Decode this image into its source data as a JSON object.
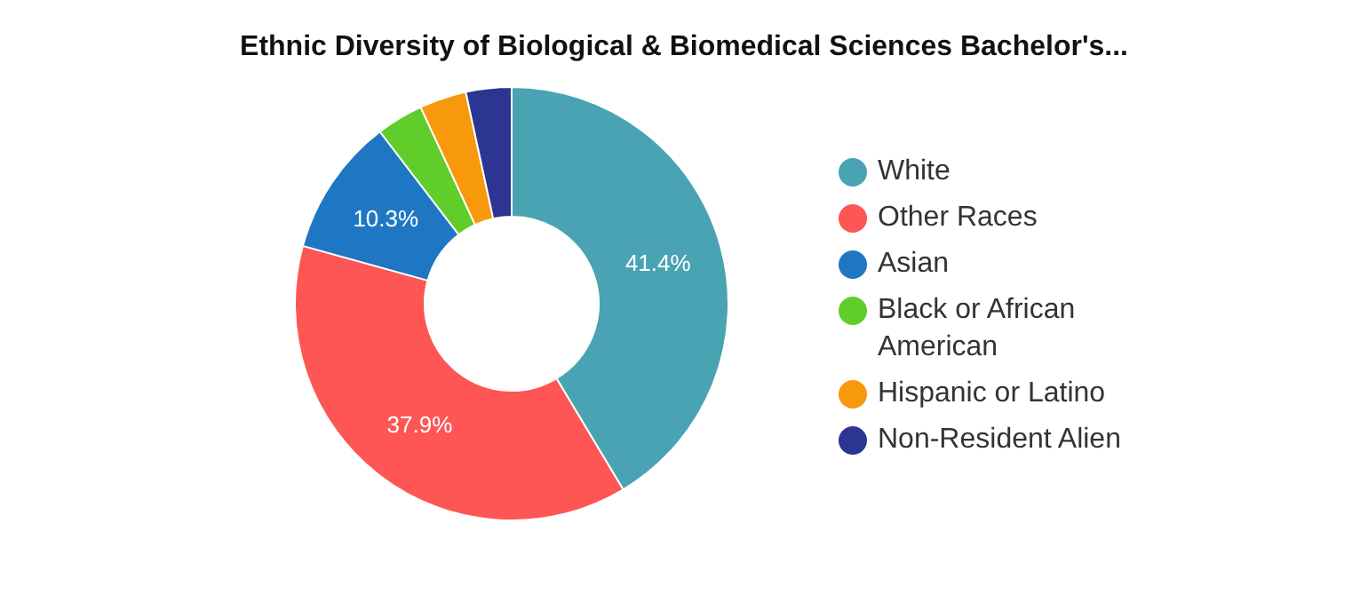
{
  "chart_data": {
    "type": "donut",
    "title": "Ethnic Diversity of Biological & Biomedical Sciences Bachelor's...",
    "categories": [
      "White",
      "Other Races",
      "Asian",
      "Black or African American",
      "Hispanic or Latino",
      "Non-Resident Alien"
    ],
    "values": [
      41.4,
      37.9,
      10.3,
      3.5,
      3.5,
      3.4
    ],
    "value_labels": [
      "41.4%",
      "37.9%",
      "10.3%",
      null,
      null,
      null
    ],
    "colors": [
      "#4aa3b3",
      "#fe5555",
      "#1f77c4",
      "#60cd2a",
      "#f7980d",
      "#2c3591"
    ],
    "legend": "right"
  }
}
